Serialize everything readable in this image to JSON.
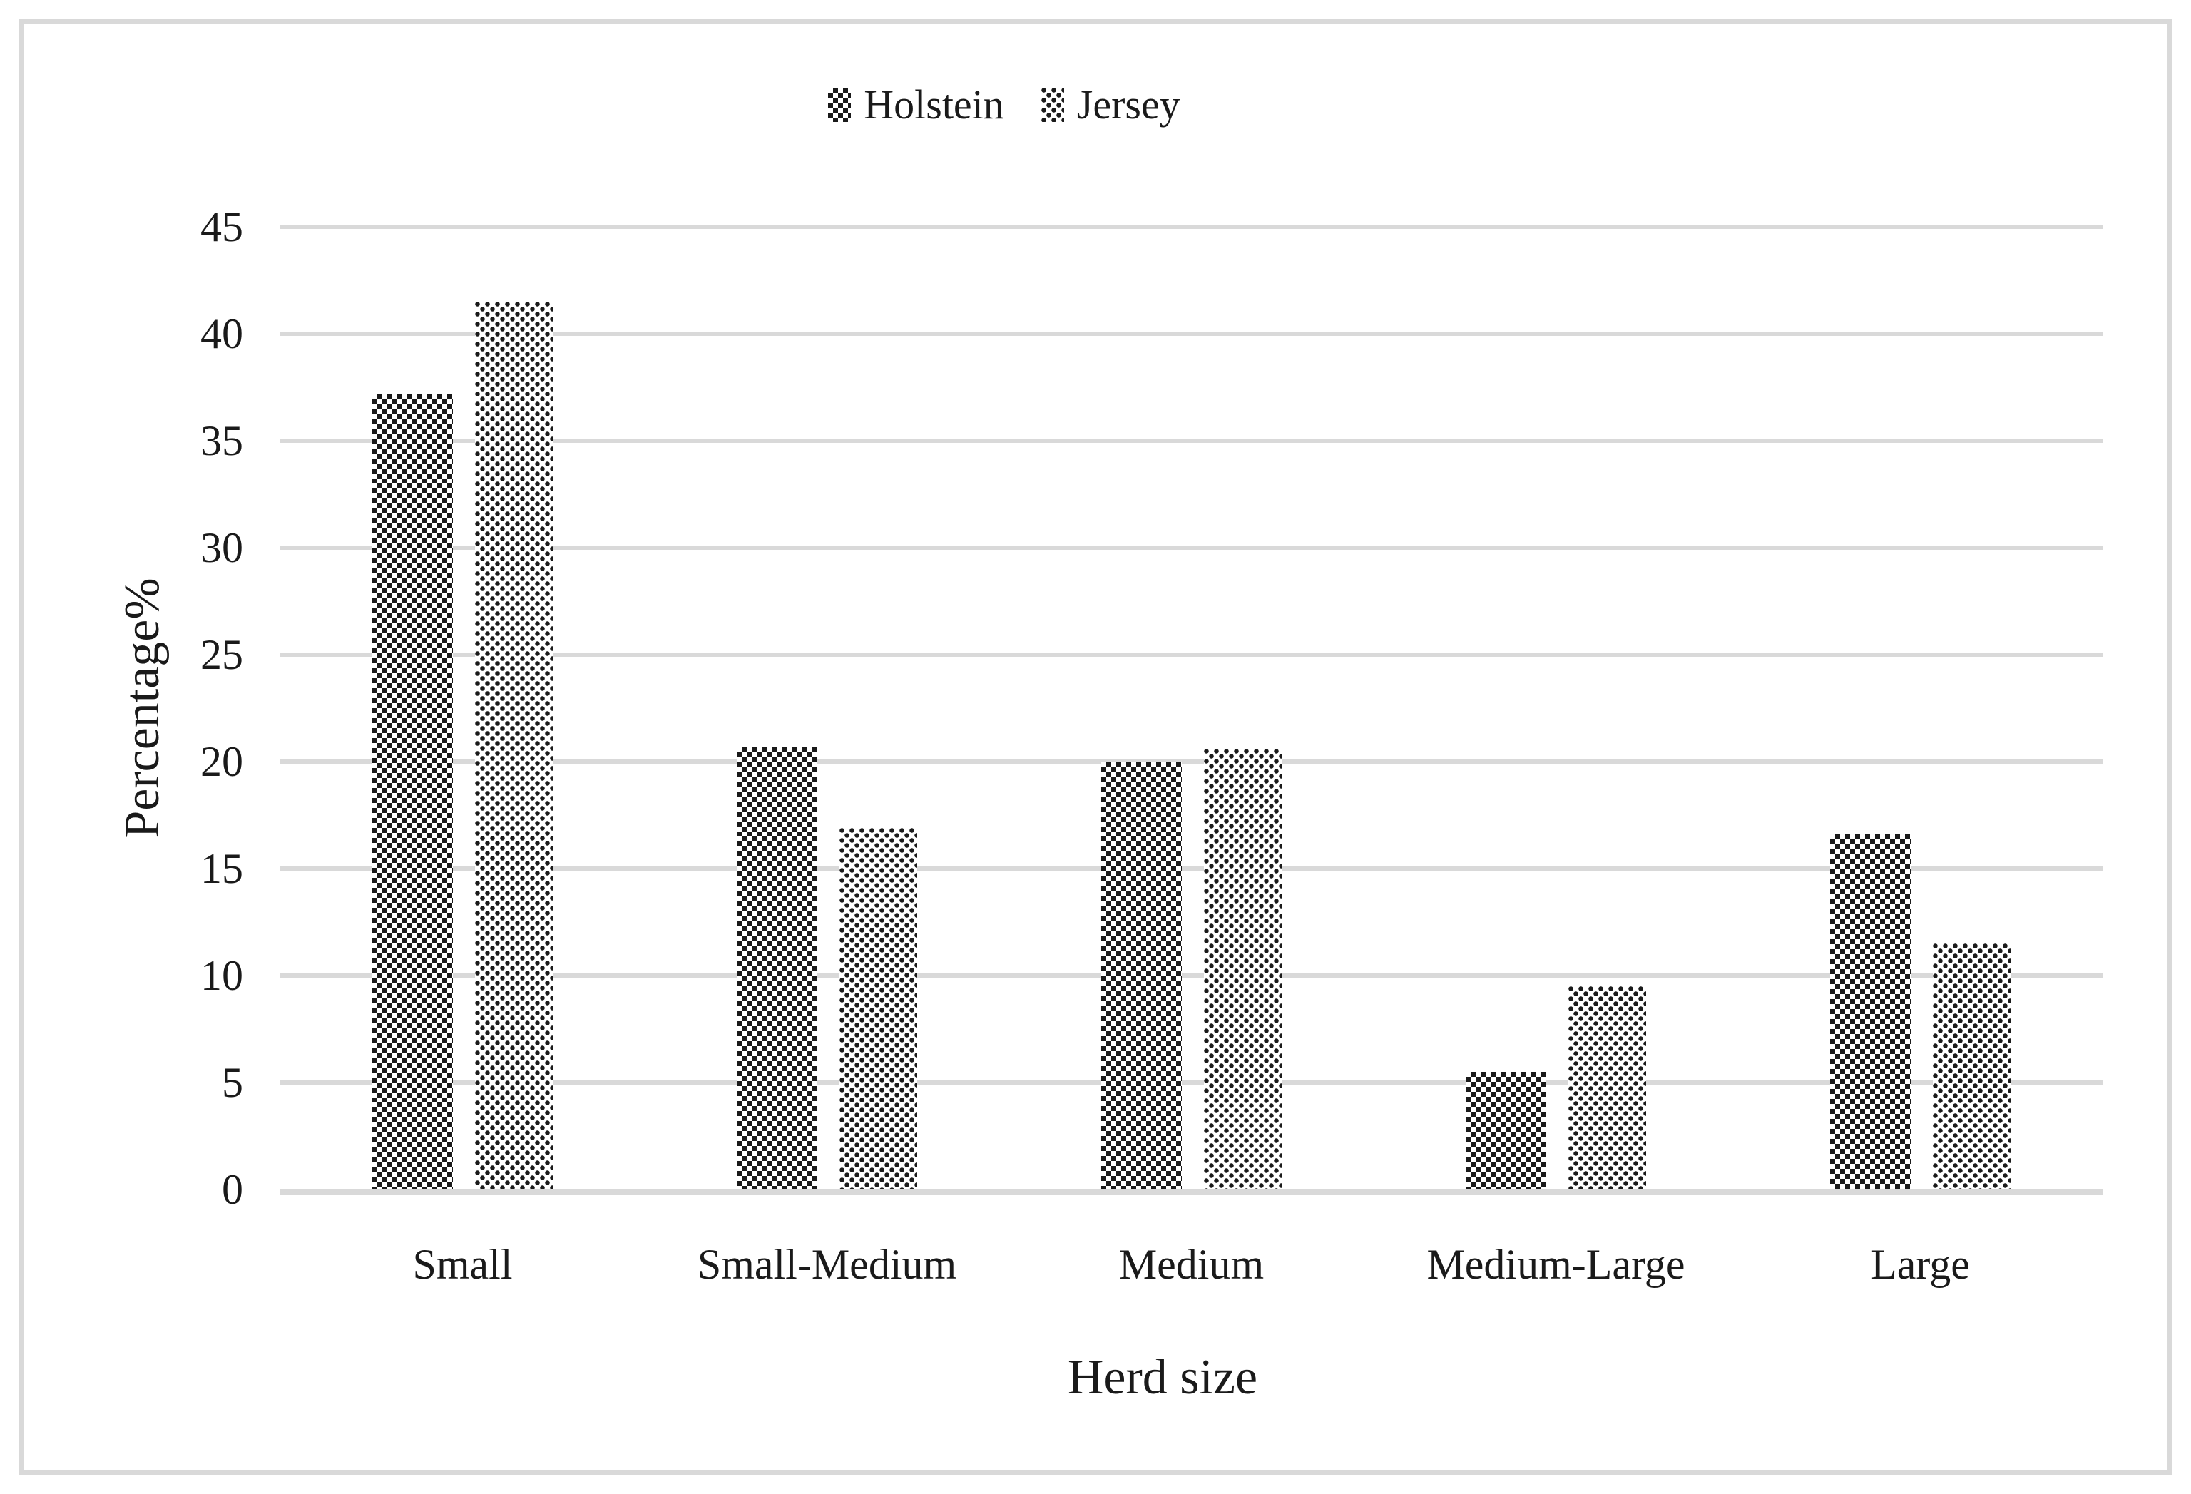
{
  "figure": {
    "background": "#ffffff",
    "border_color": "#d9d9d9"
  },
  "colors": {
    "text": "#1a1a1a",
    "gridline": "#d9d9d9",
    "axis_line": "#d9d9d9",
    "pattern_foreground": "#1a1a1a",
    "pattern_background": "#ffffff"
  },
  "legend": {
    "items": [
      {
        "label": "Holstein",
        "pattern": "checker"
      },
      {
        "label": "Jersey",
        "pattern": "dots"
      }
    ]
  },
  "chart_data": {
    "type": "bar",
    "title": "",
    "categories": [
      "Small",
      "Small-Medium",
      "Medium",
      "Medium-Large",
      "Large"
    ],
    "series": [
      {
        "name": "Holstein",
        "pattern": "checker",
        "values": [
          37.2,
          20.7,
          20.0,
          5.5,
          16.6
        ]
      },
      {
        "name": "Jersey",
        "pattern": "dots",
        "values": [
          41.5,
          16.9,
          20.6,
          9.5,
          11.5
        ]
      }
    ],
    "xlabel": "Herd size",
    "ylabel": "Percentage%",
    "ylim": [
      0,
      45
    ],
    "ytick_step": 5,
    "y_ticks": [
      0,
      5,
      10,
      15,
      20,
      25,
      30,
      35,
      40,
      45
    ],
    "grid": true,
    "legend_position": "top-center"
  }
}
